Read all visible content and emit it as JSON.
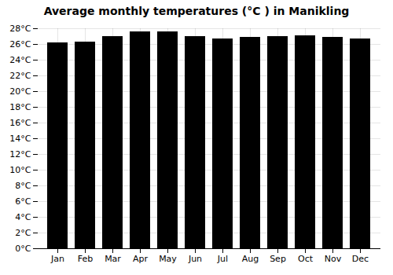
{
  "chart_data": {
    "type": "bar",
    "title": "Average monthly temperatures (°C ) in Manikling",
    "categories": [
      "Jan",
      "Feb",
      "Mar",
      "Apr",
      "May",
      "Jun",
      "Jul",
      "Aug",
      "Sep",
      "Oct",
      "Nov",
      "Dec"
    ],
    "values": [
      26.2,
      26.3,
      27.0,
      27.6,
      27.6,
      27.0,
      26.7,
      26.9,
      27.0,
      27.1,
      26.9,
      26.7
    ],
    "ylim": [
      0,
      28
    ],
    "yticks": [
      {
        "value": 0,
        "label": "0°C"
      },
      {
        "value": 2,
        "label": "2°C"
      },
      {
        "value": 4,
        "label": "4°C"
      },
      {
        "value": 6,
        "label": "6°C"
      },
      {
        "value": 8,
        "label": "8°C"
      },
      {
        "value": 10,
        "label": "10°C"
      },
      {
        "value": 12,
        "label": "12°C"
      },
      {
        "value": 14,
        "label": "14°C"
      },
      {
        "value": 16,
        "label": "16°C"
      },
      {
        "value": 18,
        "label": "18°C"
      },
      {
        "value": 20,
        "label": "20°C"
      },
      {
        "value": 22,
        "label": "22°C"
      },
      {
        "value": 24,
        "label": "24°C"
      },
      {
        "value": 26,
        "label": "26°C"
      },
      {
        "value": 28,
        "label": "28°C"
      }
    ],
    "grid": true
  }
}
